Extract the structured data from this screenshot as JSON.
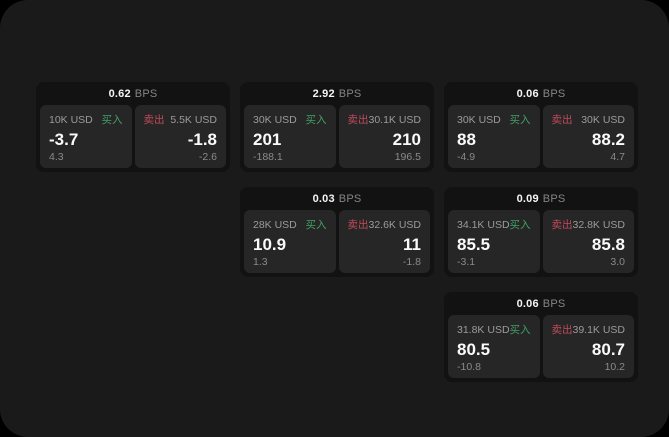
{
  "labels": {
    "bps_unit": "BPS",
    "buy": "买入",
    "sell": "卖出"
  },
  "colors": {
    "buy_green": "#42a065",
    "sell_red": "#c14a5c",
    "page_bg": "#1a1a1a",
    "card_bg": "#121212",
    "tile_bg": "#262626"
  },
  "cards": [
    {
      "bps": "0.62",
      "buy": {
        "amount": "10K USD",
        "price": "-3.7",
        "delta": "4.3"
      },
      "sell": {
        "amount": "5.5K USD",
        "price": "-1.8",
        "delta": "-2.6"
      }
    },
    {
      "bps": "2.92",
      "buy": {
        "amount": "30K USD",
        "price": "201",
        "delta": "-188.1"
      },
      "sell": {
        "amount": "30.1K USD",
        "price": "210",
        "delta": "196.5"
      }
    },
    {
      "bps": "0.06",
      "buy": {
        "amount": "30K USD",
        "price": "88",
        "delta": "-4.9"
      },
      "sell": {
        "amount": "30K USD",
        "price": "88.2",
        "delta": "4.7"
      }
    },
    {
      "bps": "0.03",
      "buy": {
        "amount": "28K USD",
        "price": "10.9",
        "delta": "1.3"
      },
      "sell": {
        "amount": "32.6K USD",
        "price": "11",
        "delta": "-1.8"
      }
    },
    {
      "bps": "0.09",
      "buy": {
        "amount": "34.1K USD",
        "price": "85.5",
        "delta": "-3.1"
      },
      "sell": {
        "amount": "32.8K USD",
        "price": "85.8",
        "delta": "3.0"
      }
    },
    {
      "bps": "0.06",
      "buy": {
        "amount": "31.8K USD",
        "price": "80.5",
        "delta": "-10.8"
      },
      "sell": {
        "amount": "39.1K USD",
        "price": "80.7",
        "delta": "10.2"
      }
    }
  ]
}
